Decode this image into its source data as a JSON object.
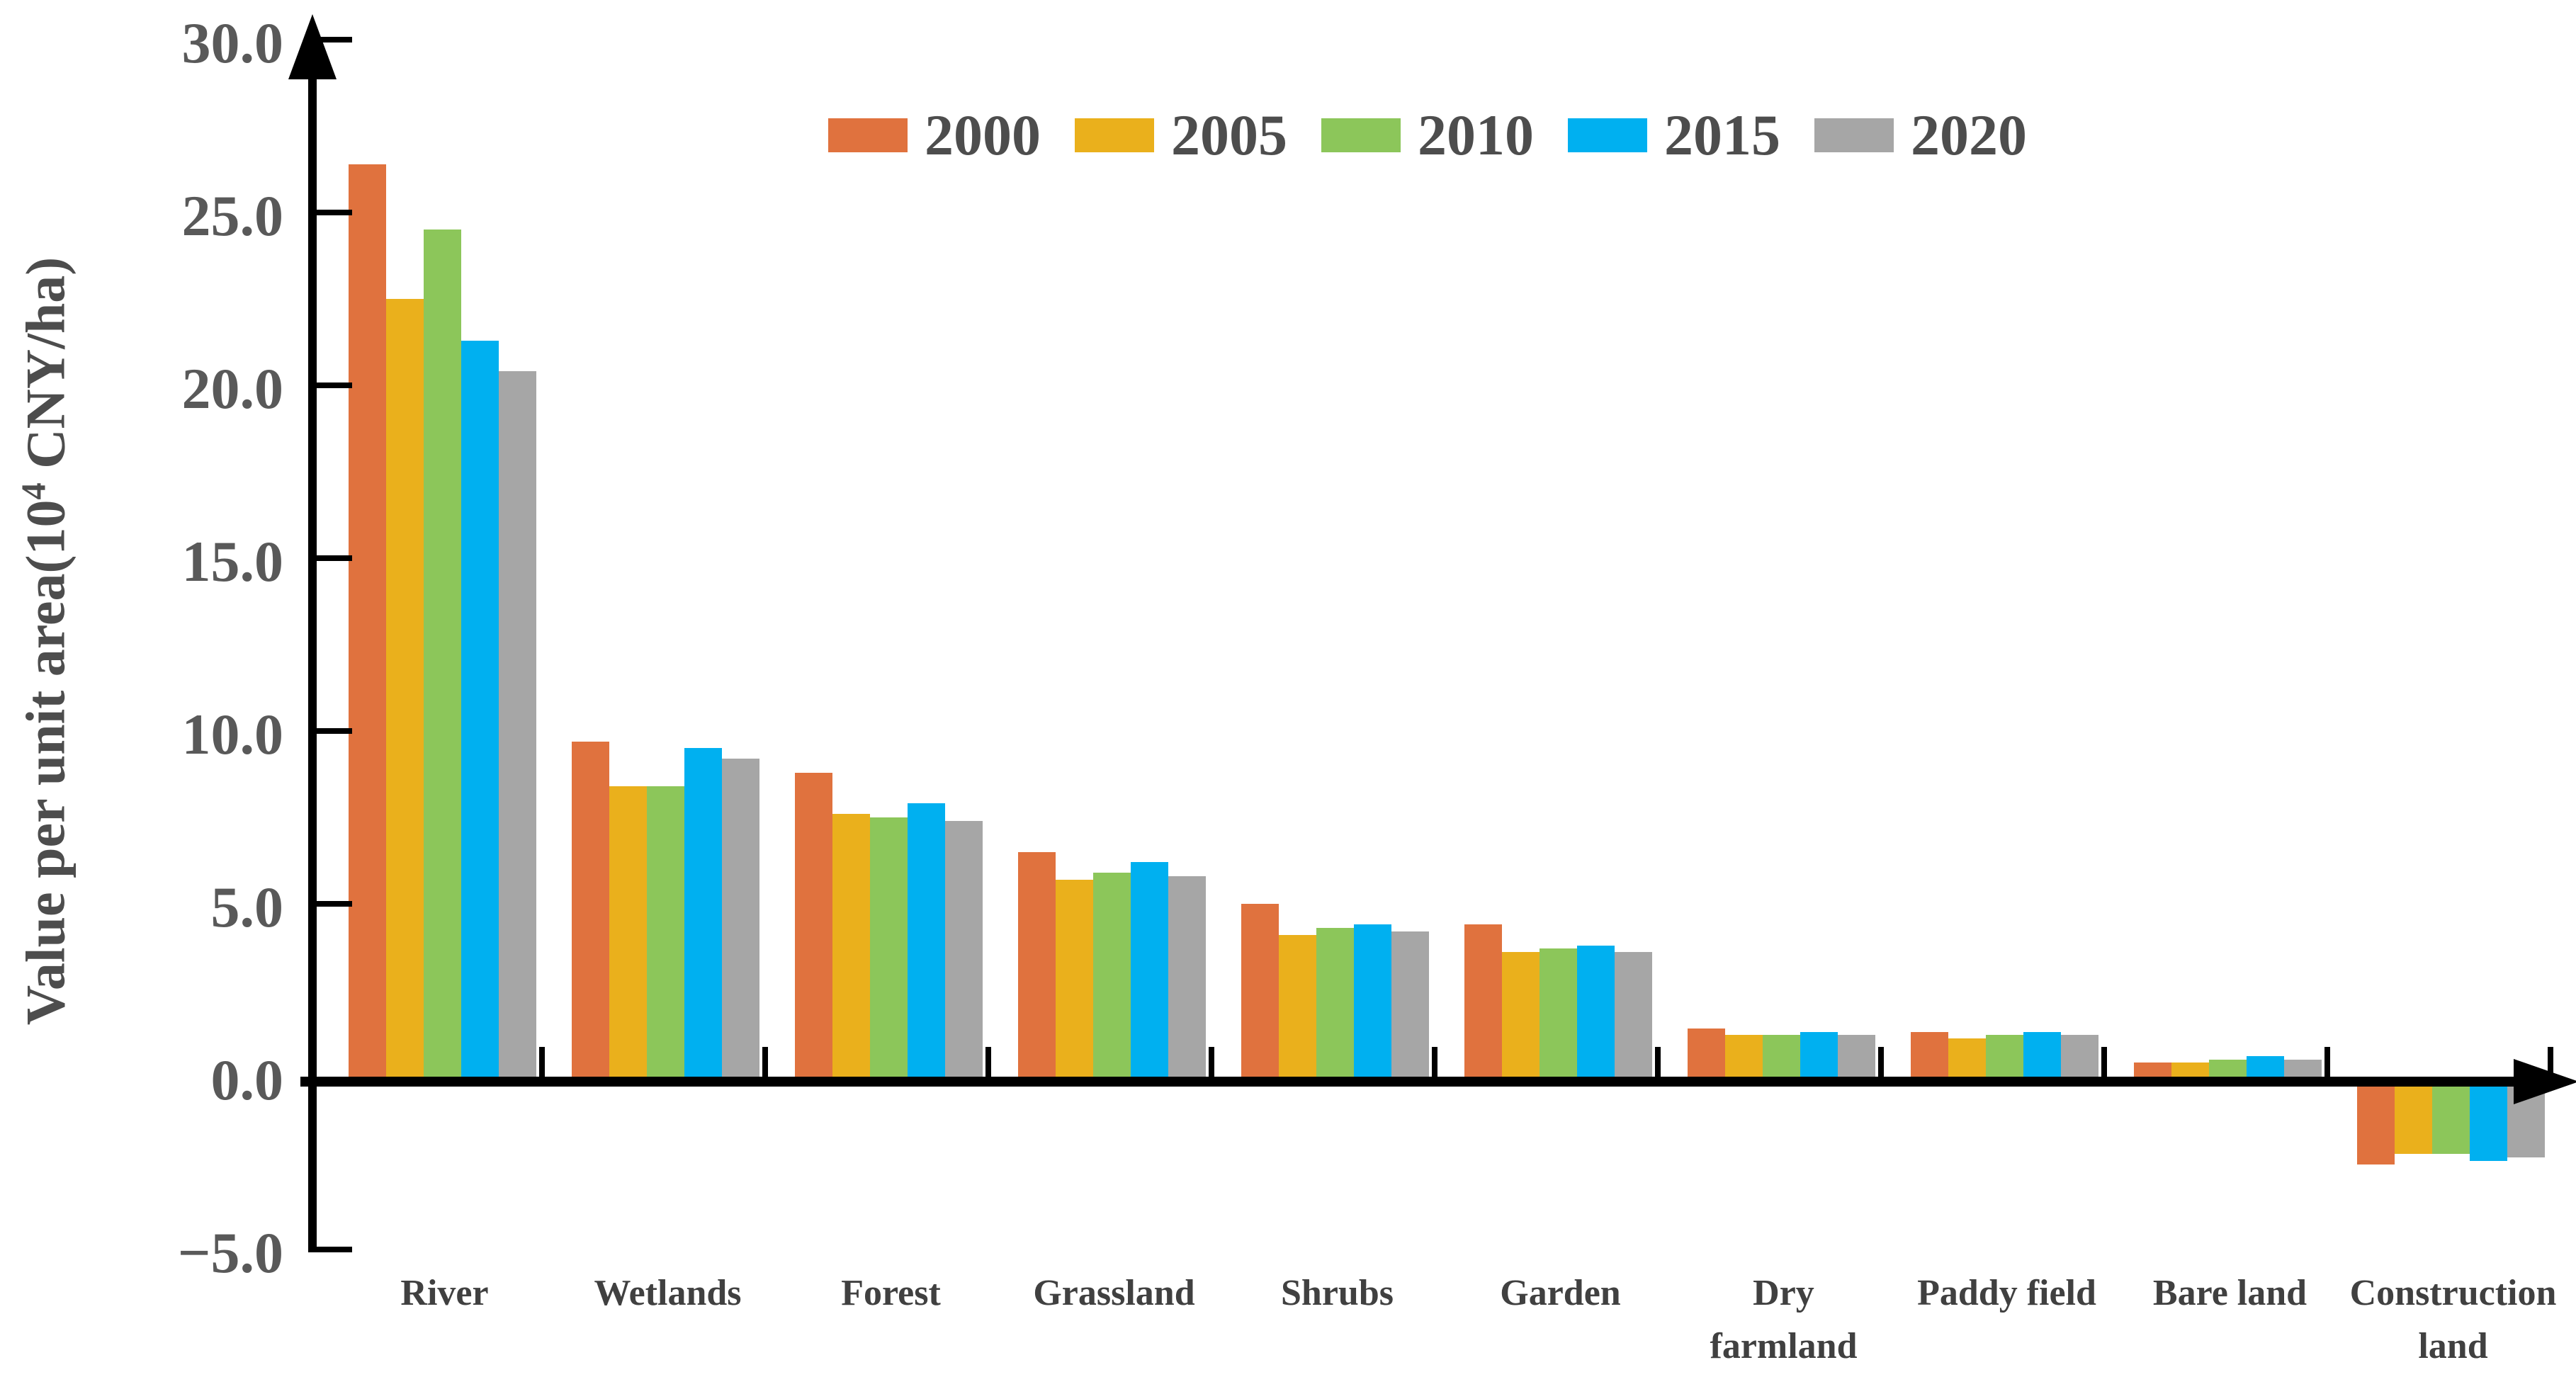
{
  "figure": {
    "background": "#ffffff",
    "axis_color": "#000000",
    "tick_label_color": "#595959",
    "category_label_color": "#404040"
  },
  "chart_data": {
    "type": "bar",
    "title": "",
    "xlabel": "",
    "ylabel": "Value per unit area(10⁴ CNY/ha)",
    "ylabel_parts": {
      "prefix": "Value per unit area(10",
      "sup": "4",
      "suffix": " CNY/ha)"
    },
    "ylim": [
      -5,
      30
    ],
    "ytick_step": 5,
    "ytick_values": [
      30,
      25,
      20,
      15,
      10,
      5,
      0,
      -5
    ],
    "ytick_labels": [
      "30.0",
      "25.0",
      "20.0",
      "15.0",
      "10.0",
      "5.0",
      "0.0",
      "−5.0"
    ],
    "grid": false,
    "legend_position": "top-center",
    "categories": [
      "River",
      "Wetlands",
      "Forest",
      "Grassland",
      "Shrubs",
      "Garden",
      "Dry farmland",
      "Paddy field",
      "Bare land",
      "Construction land"
    ],
    "category_label_lines": [
      [
        "River"
      ],
      [
        "Wetlands"
      ],
      [
        "Forest"
      ],
      [
        "Grassland"
      ],
      [
        "Shrubs"
      ],
      [
        "Garden"
      ],
      [
        "Dry",
        "farmland"
      ],
      [
        "Paddy field"
      ],
      [
        "Bare land"
      ],
      [
        "Construction",
        "land"
      ]
    ],
    "series": [
      {
        "name": "2000",
        "color": "#E0723E",
        "values": [
          26.4,
          9.7,
          8.8,
          6.5,
          5.0,
          4.4,
          1.4,
          1.3,
          0.4,
          -2.4
        ]
      },
      {
        "name": "2005",
        "color": "#EAB01C",
        "values": [
          22.5,
          8.4,
          7.6,
          5.7,
          4.1,
          3.6,
          1.2,
          1.1,
          0.4,
          -2.1
        ]
      },
      {
        "name": "2010",
        "color": "#8CC65A",
        "values": [
          24.5,
          8.4,
          7.5,
          5.9,
          4.3,
          3.7,
          1.2,
          1.2,
          0.5,
          -2.1
        ]
      },
      {
        "name": "2015",
        "color": "#00B0F0",
        "values": [
          21.3,
          9.5,
          7.9,
          6.2,
          4.4,
          3.8,
          1.3,
          1.3,
          0.6,
          -2.3
        ]
      },
      {
        "name": "2020",
        "color": "#A6A6A6",
        "values": [
          20.4,
          9.2,
          7.4,
          5.8,
          4.2,
          3.6,
          1.2,
          1.2,
          0.5,
          -2.2
        ]
      }
    ]
  }
}
